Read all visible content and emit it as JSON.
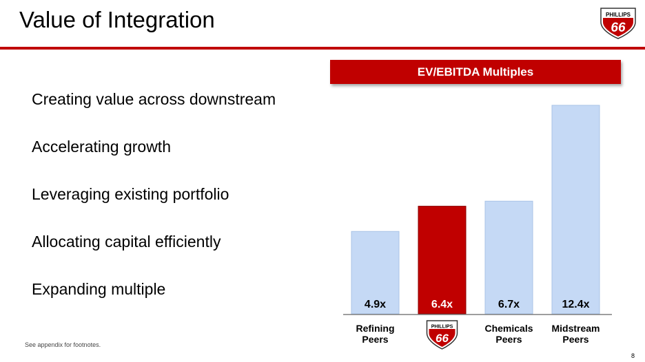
{
  "slide": {
    "title": "Value of Integration",
    "bullets": [
      "Creating value across downstream",
      "Accelerating growth",
      "Leveraging existing portfolio",
      "Allocating capital efficiently",
      "Expanding multiple"
    ],
    "footnote": "See appendix for footnotes.",
    "page_number": "8",
    "logo": {
      "brand_text": "PHILLIPS",
      "number_text": "66",
      "icon": "phillips66-shield-icon"
    }
  },
  "colors": {
    "accent": "#c00000",
    "bar_light": "#c5d9f5",
    "bar_highlight": "#c00000"
  },
  "chart_data": {
    "type": "bar",
    "title": "EV/EBITDA Multiples",
    "categories": [
      "Refining Peers",
      "Phillips 66",
      "Chemicals Peers",
      "Midstream Peers"
    ],
    "category_labels": [
      [
        "Refining",
        "Peers"
      ],
      null,
      [
        "Chemicals",
        "Peers"
      ],
      [
        "Midstream",
        "Peers"
      ]
    ],
    "values": [
      4.9,
      6.4,
      6.7,
      12.4
    ],
    "value_labels": [
      "4.9x",
      "6.4x",
      "6.7x",
      "12.4x"
    ],
    "highlight_index": 1,
    "xlabel": "",
    "ylabel": "",
    "ylim": [
      0,
      12.4
    ],
    "grid": false
  }
}
